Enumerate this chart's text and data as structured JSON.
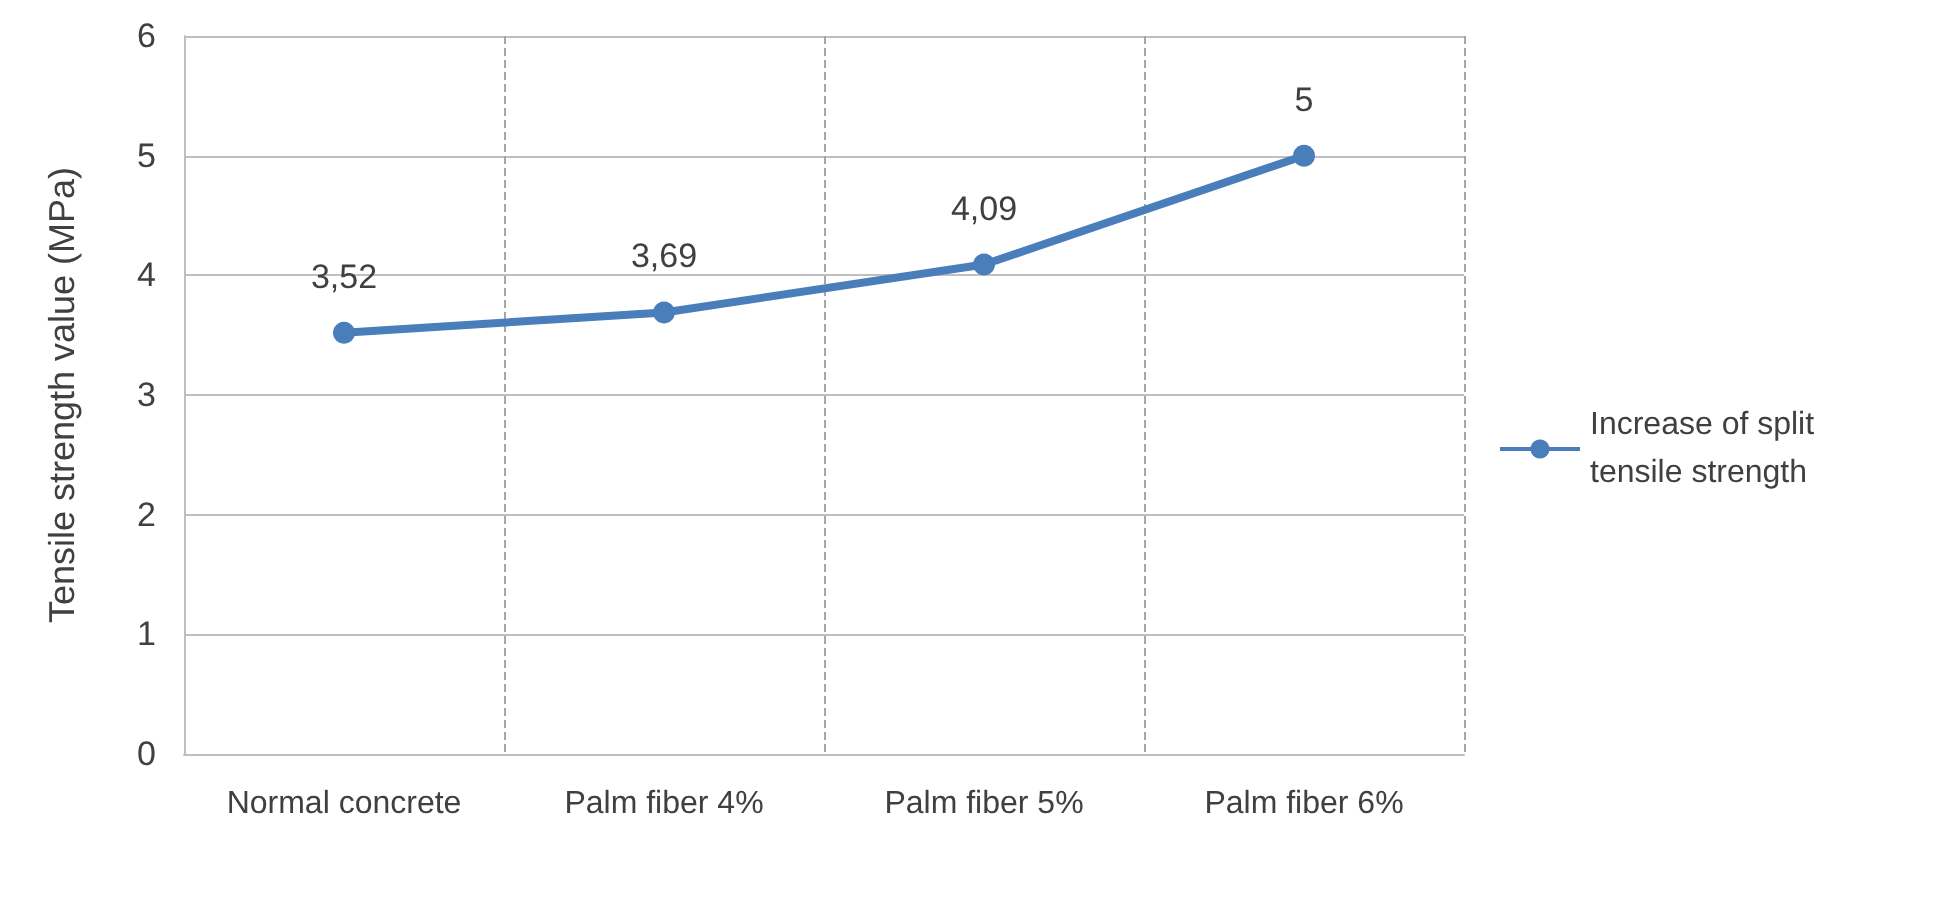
{
  "chart_data": {
    "type": "line",
    "ylabel": "Tensile strength value (MPa)",
    "categories": [
      "Normal concrete",
      "Palm fiber 4%",
      "Palm fiber 5%",
      "Palm fiber 6%"
    ],
    "series": [
      {
        "name": "Increase of split tensile strength",
        "color": "#4a7ebb",
        "values": [
          3.52,
          3.69,
          4.09,
          5
        ],
        "value_labels": [
          "3,52",
          "3,69",
          "4,09",
          "5"
        ]
      }
    ],
    "ylim": [
      0,
      6
    ],
    "yticks": [
      0,
      1,
      2,
      3,
      4,
      5,
      6
    ],
    "grid": true,
    "legend": "right",
    "marker": "circle",
    "line_style": "solid"
  }
}
